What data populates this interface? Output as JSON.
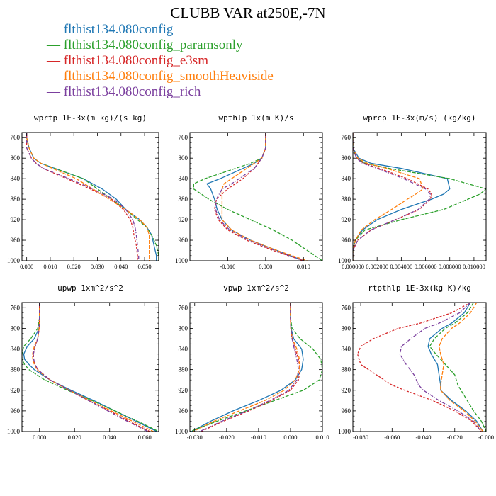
{
  "page": {
    "title": "CLUBB VAR at250E,-7N"
  },
  "legend": [
    {
      "label": "flthist134.080config",
      "color": "#1f77b4"
    },
    {
      "label": "flthist134.080config_paramsonly",
      "color": "#2ca02c"
    },
    {
      "label": "flthist134.080config_e3sm",
      "color": "#d62728"
    },
    {
      "label": "flthist134.080config_smoothHeaviside",
      "color": "#ff7f0e"
    },
    {
      "label": "flthist134.080config_rich",
      "color": "#7b3f9e"
    }
  ],
  "chart_data": [
    {
      "type": "line",
      "title": "wprtp  1E-3x(m kg)/(s kg)",
      "xlim": [
        -0.002,
        0.056
      ],
      "xticks": [
        0.0,
        0.01,
        0.02,
        0.03,
        0.04,
        0.05
      ],
      "xticklabels": [
        "0.000",
        "0.010",
        "0.020",
        "0.030",
        "0.040",
        "0.050"
      ],
      "ylim": [
        1000,
        750
      ],
      "yticks": [
        760,
        800,
        840,
        880,
        920,
        960,
        1000
      ],
      "yticklabels": [
        "760",
        "800",
        "840",
        "880",
        "920",
        "960",
        "1000"
      ],
      "y": [
        750,
        760,
        780,
        800,
        810,
        820,
        840,
        860,
        880,
        900,
        920,
        935,
        950,
        970,
        990,
        1000
      ],
      "series": [
        {
          "color": "#1f77b4",
          "dash": "none",
          "x": [
            0.0,
            0.0,
            0.001,
            0.003,
            0.006,
            0.012,
            0.024,
            0.032,
            0.038,
            0.042,
            0.048,
            0.051,
            0.053,
            0.054,
            0.055,
            0.055
          ]
        },
        {
          "color": "#2ca02c",
          "dash": "5,2",
          "x": [
            0.0,
            0.0,
            0.001,
            0.003,
            0.006,
            0.012,
            0.024,
            0.03,
            0.036,
            0.042,
            0.047,
            0.051,
            0.053,
            0.055,
            0.056,
            0.056
          ]
        },
        {
          "color": "#d62728",
          "dash": "3,2",
          "x": [
            0.0,
            0.0,
            0.0,
            0.002,
            0.004,
            0.007,
            0.017,
            0.027,
            0.036,
            0.041,
            0.044,
            0.045,
            0.0455,
            0.0465,
            0.047,
            0.047
          ]
        },
        {
          "color": "#ff7f0e",
          "dash": "5,2",
          "x": [
            0.0,
            0.0,
            0.001,
            0.003,
            0.006,
            0.011,
            0.021,
            0.028,
            0.035,
            0.042,
            0.048,
            0.051,
            0.052,
            0.052,
            0.052,
            0.052
          ]
        },
        {
          "color": "#7b3f9e",
          "dash": "5,2,1,2",
          "x": [
            0.0,
            0.0,
            0.0,
            0.002,
            0.004,
            0.007,
            0.018,
            0.028,
            0.037,
            0.042,
            0.045,
            0.046,
            0.0465,
            0.047,
            0.0475,
            0.0475
          ]
        }
      ]
    },
    {
      "type": "line",
      "title": "wpthlp  1x(m K)/s",
      "xlim": [
        -0.02,
        0.015
      ],
      "xticks": [
        -0.01,
        0.0,
        0.01
      ],
      "xticklabels": [
        "-0.010",
        "0.000",
        "0.010"
      ],
      "ylim": [
        1000,
        750
      ],
      "yticks": [
        760,
        800,
        840,
        880,
        920,
        960,
        1000
      ],
      "yticklabels": [
        "760",
        "800",
        "840",
        "880",
        "920",
        "960",
        "1000"
      ],
      "y": [
        750,
        780,
        800,
        810,
        820,
        840,
        850,
        860,
        880,
        900,
        920,
        940,
        960,
        980,
        1000
      ],
      "series": [
        {
          "color": "#1f77b4",
          "dash": "none",
          "x": [
            0.0,
            0.0,
            -0.001,
            -0.003,
            -0.006,
            -0.012,
            -0.0155,
            -0.0145,
            -0.0135,
            -0.0128,
            -0.0115,
            -0.009,
            -0.004,
            0.003,
            0.01
          ]
        },
        {
          "color": "#2ca02c",
          "dash": "5,2",
          "x": [
            0.0,
            0.0,
            -0.001,
            -0.004,
            -0.008,
            -0.016,
            -0.019,
            -0.019,
            -0.015,
            -0.01,
            -0.004,
            0.002,
            0.007,
            0.011,
            0.015
          ]
        },
        {
          "color": "#d62728",
          "dash": "3,2",
          "x": [
            0.0,
            0.0,
            -0.001,
            -0.002,
            -0.003,
            -0.006,
            -0.008,
            -0.01,
            -0.013,
            -0.0135,
            -0.0125,
            -0.01,
            -0.005,
            0.002,
            0.01
          ]
        },
        {
          "color": "#ff7f0e",
          "dash": "5,2",
          "x": [
            0.0,
            0.0,
            -0.001,
            -0.003,
            -0.005,
            -0.009,
            -0.011,
            -0.0115,
            -0.0115,
            -0.0115,
            -0.0115,
            -0.009,
            -0.004,
            0.003,
            0.011
          ]
        },
        {
          "color": "#7b3f9e",
          "dash": "5,2,1,2",
          "x": [
            0.0,
            0.0,
            -0.001,
            -0.002,
            -0.003,
            -0.007,
            -0.009,
            -0.0115,
            -0.013,
            -0.0132,
            -0.0122,
            -0.0095,
            -0.0045,
            0.0025,
            0.01
          ]
        }
      ]
    },
    {
      "type": "line",
      "title": "wprcp  1E-3x(m/s) (kg/kg)",
      "xlim": [
        0.0,
        0.011
      ],
      "xticks": [
        0.0,
        0.002,
        0.004,
        0.006,
        0.008,
        0.01
      ],
      "xticklabels": [
        "0.000000",
        "0.002000",
        "0.004000",
        "0.006000",
        "0.008000",
        "0.010000"
      ],
      "ylim": [
        1000,
        750
      ],
      "yticks": [
        760,
        800,
        840,
        880,
        920,
        960,
        1000
      ],
      "yticklabels": [
        "760",
        "800",
        "840",
        "880",
        "920",
        "960",
        "1000"
      ],
      "y": [
        750,
        780,
        800,
        810,
        820,
        840,
        860,
        870,
        880,
        900,
        920,
        940,
        960,
        980,
        1000
      ],
      "series": [
        {
          "color": "#1f77b4",
          "dash": "none",
          "x": [
            0.0,
            0.0,
            0.0005,
            0.0015,
            0.004,
            0.0078,
            0.008,
            0.0075,
            0.0065,
            0.004,
            0.002,
            0.0008,
            0.0002,
            0.0,
            0.0
          ]
        },
        {
          "color": "#2ca02c",
          "dash": "5,2",
          "x": [
            0.0,
            0.0,
            0.0003,
            0.001,
            0.003,
            0.008,
            0.011,
            0.0105,
            0.0095,
            0.0075,
            0.004,
            0.001,
            0.0002,
            0.0,
            0.0
          ]
        },
        {
          "color": "#d62728",
          "dash": "3,2",
          "x": [
            0.0,
            0.0,
            0.0003,
            0.0009,
            0.0022,
            0.0045,
            0.0062,
            0.0065,
            0.0064,
            0.0055,
            0.0035,
            0.0015,
            0.0004,
            0.0,
            0.0
          ]
        },
        {
          "color": "#ff7f0e",
          "dash": "5,2",
          "x": [
            0.0,
            0.0,
            0.0004,
            0.0012,
            0.0028,
            0.0055,
            0.0058,
            0.0052,
            0.0045,
            0.0032,
            0.0018,
            0.0007,
            0.0002,
            0.0,
            0.0
          ]
        },
        {
          "color": "#7b3f9e",
          "dash": "5,2,1,2",
          "x": [
            0.0,
            0.0,
            0.0003,
            0.0008,
            0.002,
            0.0042,
            0.006,
            0.0064,
            0.0063,
            0.0054,
            0.0035,
            0.0015,
            0.0004,
            0.0,
            0.0
          ]
        }
      ]
    },
    {
      "type": "line",
      "title": "upwp  1xm^2/s^2",
      "xlim": [
        -0.01,
        0.068
      ],
      "xticks": [
        0.0,
        0.02,
        0.04,
        0.06
      ],
      "xticklabels": [
        "0.000",
        "0.020",
        "0.040",
        "0.060"
      ],
      "ylim": [
        1000,
        750
      ],
      "yticks": [
        760,
        800,
        840,
        880,
        920,
        960,
        1000
      ],
      "yticklabels": [
        "760",
        "800",
        "840",
        "880",
        "920",
        "960",
        "1000"
      ],
      "y": [
        750,
        780,
        800,
        820,
        835,
        850,
        860,
        870,
        880,
        900,
        920,
        940,
        960,
        980,
        1000
      ],
      "series": [
        {
          "color": "#1f77b4",
          "dash": "none",
          "x": [
            0.0,
            0.0,
            -0.0003,
            -0.003,
            -0.007,
            -0.009,
            -0.0085,
            -0.006,
            -0.003,
            0.006,
            0.018,
            0.031,
            0.043,
            0.055,
            0.067
          ]
        },
        {
          "color": "#2ca02c",
          "dash": "5,2",
          "x": [
            0.0,
            0.0,
            -0.001,
            -0.005,
            -0.009,
            -0.01,
            -0.01,
            -0.0085,
            -0.006,
            0.003,
            0.016,
            0.03,
            0.043,
            0.056,
            0.068
          ]
        },
        {
          "color": "#d62728",
          "dash": "3,2",
          "x": [
            0.0,
            0.0,
            -0.0002,
            -0.001,
            -0.0025,
            -0.0035,
            -0.0033,
            -0.0025,
            -0.001,
            0.006,
            0.017,
            0.028,
            0.04,
            0.051,
            0.063
          ]
        },
        {
          "color": "#ff7f0e",
          "dash": "5,2",
          "x": [
            0.0,
            0.0,
            -0.0002,
            -0.001,
            -0.003,
            -0.004,
            -0.0038,
            -0.003,
            -0.0015,
            0.006,
            0.017,
            0.029,
            0.041,
            0.053,
            0.065
          ]
        },
        {
          "color": "#7b3f9e",
          "dash": "5,2,1,2",
          "x": [
            0.0,
            0.0,
            -0.0002,
            -0.001,
            -0.0025,
            -0.0035,
            -0.0033,
            -0.0025,
            -0.001,
            0.006,
            0.017,
            0.028,
            0.039,
            0.05,
            0.062
          ]
        }
      ]
    },
    {
      "type": "line",
      "title": "vpwp  1xm^2/s^2",
      "xlim": [
        -0.0315,
        0.01
      ],
      "xticks": [
        -0.03,
        -0.02,
        -0.01,
        0.0,
        0.01
      ],
      "xticklabels": [
        "-0.030",
        "-0.020",
        "-0.010",
        "0.000",
        "0.010"
      ],
      "ylim": [
        1000,
        750
      ],
      "yticks": [
        760,
        800,
        840,
        880,
        920,
        960,
        1000
      ],
      "yticklabels": [
        "760",
        "800",
        "840",
        "880",
        "920",
        "960",
        "1000"
      ],
      "y": [
        750,
        780,
        800,
        820,
        840,
        860,
        880,
        900,
        920,
        940,
        960,
        980,
        1000
      ],
      "series": [
        {
          "color": "#1f77b4",
          "dash": "none",
          "x": [
            0.0,
            0.0,
            0.0002,
            0.001,
            0.0035,
            0.004,
            0.0035,
            0.0015,
            -0.003,
            -0.01,
            -0.018,
            -0.025,
            -0.031
          ]
        },
        {
          "color": "#2ca02c",
          "dash": "5,2",
          "x": [
            0.0,
            0.0,
            0.0005,
            0.003,
            0.007,
            0.0095,
            0.01,
            0.009,
            0.004,
            -0.005,
            -0.014,
            -0.023,
            -0.0315
          ]
        },
        {
          "color": "#d62728",
          "dash": "3,2",
          "x": [
            0.0,
            0.0,
            0.0001,
            0.0005,
            0.0015,
            0.0025,
            0.003,
            0.0025,
            0.0,
            -0.006,
            -0.013,
            -0.021,
            -0.028
          ]
        },
        {
          "color": "#ff7f0e",
          "dash": "5,2",
          "x": [
            0.0,
            0.0,
            0.0001,
            0.0006,
            0.002,
            0.0028,
            0.0028,
            0.0015,
            -0.002,
            -0.008,
            -0.016,
            -0.024,
            -0.0305
          ]
        },
        {
          "color": "#7b3f9e",
          "dash": "5,2,1,2",
          "x": [
            0.0,
            0.0,
            0.0001,
            0.0005,
            0.0012,
            0.002,
            0.0025,
            0.002,
            -0.0005,
            -0.0065,
            -0.0135,
            -0.0215,
            -0.0285
          ]
        }
      ]
    },
    {
      "type": "line",
      "title": "rtpthlp  1E-3x(kg K)/kg",
      "xlim": [
        -0.085,
        0.0
      ],
      "xticks": [
        -0.08,
        -0.06,
        -0.04,
        -0.02,
        0.0
      ],
      "xticklabels": [
        "-0.080",
        "-0.060",
        "-0.040",
        "-0.020",
        "-0.000"
      ],
      "ylim": [
        1000,
        750
      ],
      "yticks": [
        760,
        800,
        840,
        880,
        920,
        960,
        1000
      ],
      "yticklabels": [
        "760",
        "800",
        "840",
        "880",
        "920",
        "960",
        "1000"
      ],
      "y": [
        750,
        770,
        790,
        800,
        820,
        835,
        850,
        870,
        890,
        910,
        920,
        940,
        960,
        980,
        1000
      ],
      "series": [
        {
          "color": "#1f77b4",
          "dash": "none",
          "x": [
            -0.01,
            -0.014,
            -0.022,
            -0.028,
            -0.036,
            -0.037,
            -0.035,
            -0.031,
            -0.03,
            -0.029,
            -0.029,
            -0.022,
            -0.013,
            -0.006,
            -0.002
          ]
        },
        {
          "color": "#2ca02c",
          "dash": "5,2",
          "x": [
            -0.008,
            -0.012,
            -0.02,
            -0.026,
            -0.033,
            -0.036,
            -0.032,
            -0.026,
            -0.02,
            -0.018,
            -0.016,
            -0.012,
            -0.008,
            -0.003,
            0.0
          ]
        },
        {
          "color": "#d62728",
          "dash": "3,2",
          "x": [
            -0.01,
            -0.022,
            -0.042,
            -0.056,
            -0.072,
            -0.08,
            -0.082,
            -0.08,
            -0.07,
            -0.06,
            -0.052,
            -0.034,
            -0.02,
            -0.009,
            -0.003
          ]
        },
        {
          "color": "#ff7f0e",
          "dash": "5,2",
          "x": [
            -0.006,
            -0.01,
            -0.017,
            -0.022,
            -0.028,
            -0.03,
            -0.029,
            -0.027,
            -0.028,
            -0.029,
            -0.029,
            -0.023,
            -0.014,
            -0.007,
            -0.002
          ]
        },
        {
          "color": "#7b3f9e",
          "dash": "5,2,1,2",
          "x": [
            -0.01,
            -0.017,
            -0.03,
            -0.039,
            -0.048,
            -0.054,
            -0.055,
            -0.051,
            -0.046,
            -0.043,
            -0.04,
            -0.03,
            -0.018,
            -0.008,
            -0.003
          ]
        }
      ]
    }
  ]
}
